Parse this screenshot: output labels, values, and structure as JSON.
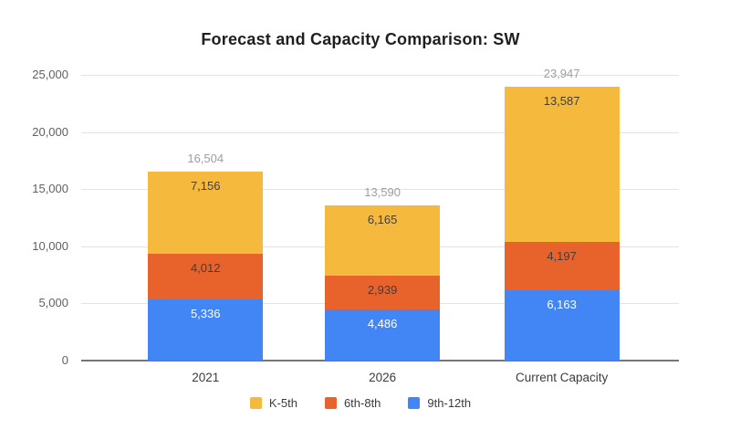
{
  "chart_data": {
    "type": "bar",
    "stacked": true,
    "title": "Forecast and Capacity Comparison: SW",
    "categories": [
      "2021",
      "2026",
      "Current Capacity"
    ],
    "series": [
      {
        "name": "K-5th",
        "color": "#F5B93D",
        "label_color": "#3f3f3f",
        "values": [
          7156,
          6165,
          13587
        ]
      },
      {
        "name": "6th-8th",
        "color": "#E8632C",
        "label_color": "#3f3f3f",
        "values": [
          4012,
          2939,
          4197
        ]
      },
      {
        "name": "9th-12th",
        "color": "#4285F4",
        "label_color": "#ffffff",
        "values": [
          5336,
          4486,
          6163
        ]
      }
    ],
    "stack_order_bottom_to_top": [
      "9th-12th",
      "6th-8th",
      "K-5th"
    ],
    "totals": [
      16504,
      13590,
      23947
    ],
    "data_labels": {
      "totals": [
        "16,504",
        "13,590",
        "23,947"
      ],
      "per_category_top_to_bottom": [
        [
          "7,156",
          "4,012",
          "5,336"
        ],
        [
          "6,165",
          "2,939",
          "4,486"
        ],
        [
          "13,587",
          "4,197",
          "6,163"
        ]
      ]
    },
    "xlabel": "",
    "ylabel": "",
    "ylim": [
      0,
      25000
    ],
    "y_ticks": [
      0,
      5000,
      10000,
      15000,
      20000,
      25000
    ],
    "y_tick_labels": [
      "0",
      "5,000",
      "10,000",
      "15,000",
      "20,000",
      "25,000"
    ],
    "grid": true,
    "legend_position": "bottom",
    "colors": {
      "total_label": "#9e9e9e",
      "axis_label": "#616161",
      "category_label": "#3c3c3c",
      "gridline": "#e3e3e3",
      "axis_line": "#757575"
    }
  }
}
